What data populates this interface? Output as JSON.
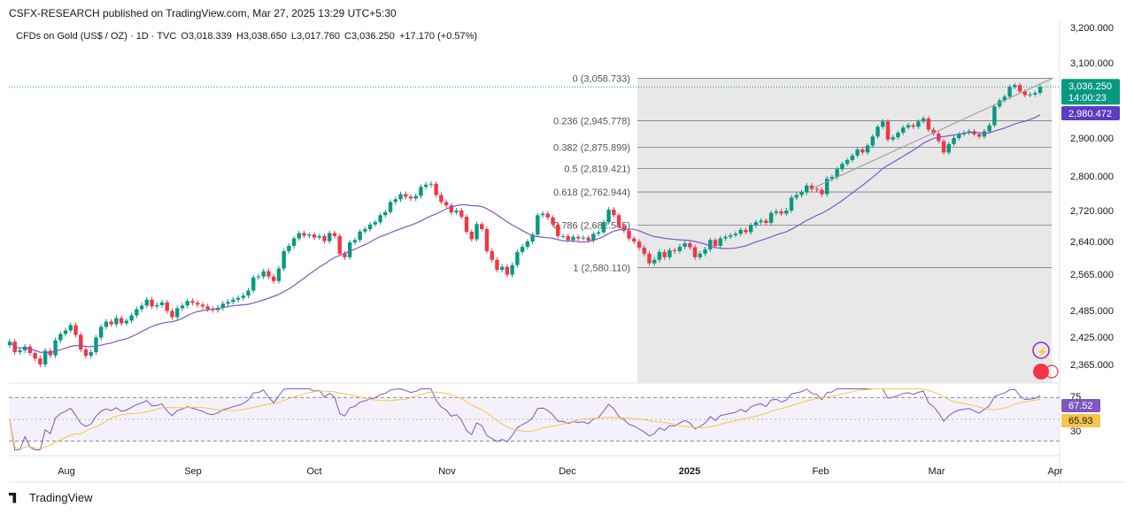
{
  "publisher_line": "CSFX-RESEARCH published on TradingView.com, Mar 27, 2025 13:29 UTC+5:30",
  "legend": {
    "symbol": "CFDs on Gold (US$ / OZ) · 1D · TVC",
    "open": "O3,018.339",
    "high": "H3,038.650",
    "low": "L3,017.760",
    "close": "C3,036.250",
    "change": "+17.170 (+0.57%)"
  },
  "brand": "TradingView",
  "colors": {
    "up": "#089981",
    "down": "#f23645",
    "ma": "#7e57c2",
    "rsi": "#7e57c2",
    "rsi_ma": "#f7c548",
    "fib_bg": "#e8e8e8",
    "price_badge": "#089981",
    "ma_badge": "#5b3cc4"
  },
  "chart_data": {
    "type": "candlestick",
    "price_axis_ticks": [
      "3,200.000",
      "3,100.000",
      "2,900.000",
      "2,800.000",
      "2,720.000",
      "2,640.000",
      "2,565.000",
      "2,485.000",
      "2,425.000",
      "2,365.000"
    ],
    "price_axis_values": [
      3200,
      3100,
      2900,
      2800,
      2720,
      2640,
      2565,
      2485,
      2425,
      2365
    ],
    "time_axis_ticks": [
      "Aug",
      "Sep",
      "Oct",
      "Nov",
      "Dec",
      "2025",
      "Feb",
      "Mar",
      "Apr"
    ],
    "current_price": {
      "value": "3,036.250",
      "countdown": "14:00:23"
    },
    "ma_value": "2,980.472",
    "fibonacci": [
      {
        "level": "0",
        "price": "3,058.733",
        "value": 3058.733
      },
      {
        "level": "0.236",
        "price": "2,945.778",
        "value": 2945.778
      },
      {
        "level": "0.382",
        "price": "2,875.899",
        "value": 2875.899
      },
      {
        "level": "0.5",
        "price": "2,819.421",
        "value": 2819.421
      },
      {
        "level": "0.618",
        "price": "2,762.944",
        "value": 2762.944
      },
      {
        "level": "0.786",
        "price": "2,682.545",
        "value": 2682.545
      },
      {
        "level": "1",
        "price": "2,580.110",
        "value": 2580.11
      }
    ],
    "candles_close": [
      2415,
      2392,
      2396,
      2404,
      2390,
      2378,
      2365,
      2395,
      2385,
      2418,
      2432,
      2440,
      2452,
      2430,
      2398,
      2384,
      2392,
      2424,
      2448,
      2460,
      2454,
      2468,
      2456,
      2462,
      2474,
      2488,
      2496,
      2509,
      2494,
      2497,
      2503,
      2484,
      2470,
      2490,
      2496,
      2506,
      2502,
      2498,
      2494,
      2488,
      2486,
      2491,
      2500,
      2504,
      2509,
      2513,
      2518,
      2529,
      2558,
      2560,
      2572,
      2560,
      2550,
      2578,
      2618,
      2630,
      2648,
      2662,
      2655,
      2658,
      2650,
      2654,
      2641,
      2662,
      2654,
      2612,
      2604,
      2638,
      2644,
      2666,
      2672,
      2684,
      2690,
      2708,
      2716,
      2740,
      2746,
      2758,
      2752,
      2748,
      2754,
      2775,
      2780,
      2782,
      2756,
      2740,
      2732,
      2715,
      2720,
      2704,
      2665,
      2646,
      2685,
      2672,
      2618,
      2598,
      2575,
      2582,
      2564,
      2586,
      2616,
      2628,
      2640,
      2658,
      2708,
      2712,
      2702,
      2684,
      2654,
      2654,
      2644,
      2652,
      2648,
      2650,
      2643,
      2660,
      2664,
      2690,
      2722,
      2708,
      2680,
      2668,
      2648,
      2640,
      2626,
      2612,
      2590,
      2598,
      2616,
      2604,
      2620,
      2618,
      2628,
      2636,
      2627,
      2604,
      2612,
      2622,
      2644,
      2630,
      2648,
      2652,
      2656,
      2660,
      2670,
      2664,
      2682,
      2690,
      2694,
      2688,
      2714,
      2718,
      2712,
      2720,
      2750,
      2756,
      2762,
      2778,
      2770,
      2768,
      2758,
      2794,
      2798,
      2818,
      2832,
      2842,
      2854,
      2870,
      2862,
      2880,
      2904,
      2930,
      2944,
      2896,
      2902,
      2914,
      2928,
      2934,
      2930,
      2944,
      2952,
      2922,
      2912,
      2892,
      2862,
      2884,
      2900,
      2910,
      2914,
      2918,
      2910,
      2904,
      2918,
      2934,
      2984,
      3000,
      3010,
      3036,
      3041,
      3024,
      3014,
      3016,
      3020,
      3036
    ]
  },
  "rsi": {
    "current": "67.52",
    "ma_current": "65.93",
    "top_level": "75",
    "bottom_level": "30"
  }
}
